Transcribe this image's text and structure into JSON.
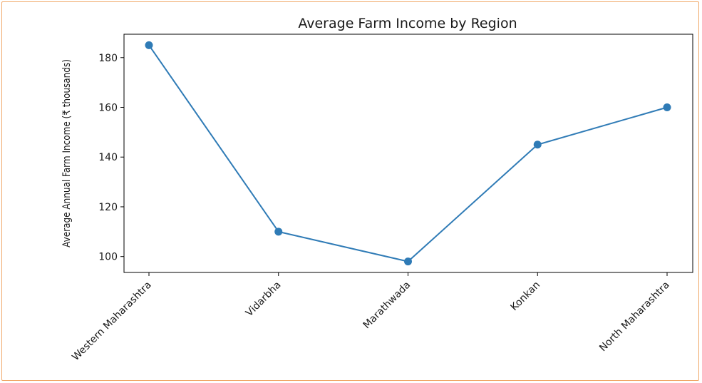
{
  "colors": {
    "frame_border": "#f0a868",
    "series_line": "#2f7bb6",
    "axis": "#000000"
  },
  "chart_data": {
    "type": "line",
    "title": "Average Farm Income by Region",
    "xlabel": "",
    "ylabel": "Average Annual Farm Income (₹ thousands)",
    "categories": [
      "Western Maharashtra",
      "Vidarbha",
      "Marathwada",
      "Konkan",
      "North Maharashtra"
    ],
    "values": [
      185,
      110,
      98,
      145,
      160
    ],
    "ylim": [
      93.6,
      189.4
    ],
    "yticks": [
      "100",
      "120",
      "140",
      "160",
      "180"
    ],
    "grid": false,
    "marker": "circle"
  }
}
